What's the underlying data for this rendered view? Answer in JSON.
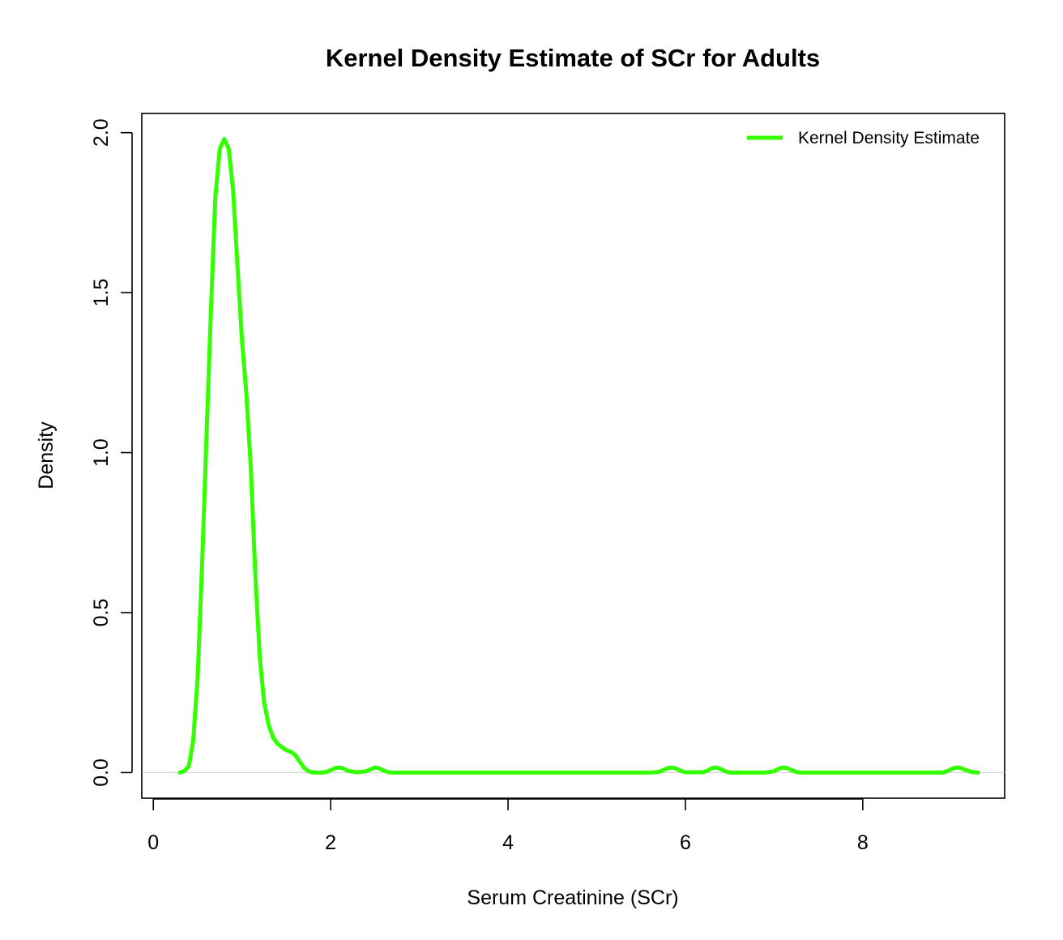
{
  "chart_data": {
    "type": "line",
    "title": "Kernel Density Estimate of SCr for Adults",
    "xlabel": "Serum Creatinine (SCr)",
    "ylabel": "Density",
    "xlim": [
      -0.13,
      9.6
    ],
    "ylim": [
      -0.08,
      2.06
    ],
    "xticks": [
      0,
      2,
      4,
      6,
      8
    ],
    "xtick_labels": [
      "0",
      "2",
      "4",
      "6",
      "8"
    ],
    "yticks": [
      0,
      0.5,
      1,
      1.5,
      2
    ],
    "ytick_labels": [
      "0.0",
      "0.5",
      "1.0",
      "1.5",
      "2.0"
    ],
    "grid": false,
    "legend_position": "top-right",
    "reference_line_y": 0,
    "reference_line_color": "#cccccc",
    "series": [
      {
        "name": "Kernel Density Estimate",
        "color": "#33ff00",
        "x": [
          0.3,
          0.35,
          0.4,
          0.45,
          0.5,
          0.55,
          0.6,
          0.65,
          0.7,
          0.75,
          0.8,
          0.85,
          0.9,
          0.95,
          1.0,
          1.05,
          1.1,
          1.15,
          1.2,
          1.25,
          1.3,
          1.35,
          1.4,
          1.45,
          1.5,
          1.55,
          1.6,
          1.65,
          1.7,
          1.75,
          1.8,
          1.85,
          1.9,
          1.95,
          2.0,
          2.05,
          2.1,
          2.15,
          2.2,
          2.3,
          2.4,
          2.45,
          2.5,
          2.55,
          2.6,
          2.65,
          2.7,
          3.0,
          4.0,
          5.0,
          5.6,
          5.7,
          5.75,
          5.8,
          5.85,
          5.9,
          5.95,
          6.0,
          6.2,
          6.25,
          6.3,
          6.35,
          6.4,
          6.45,
          6.5,
          6.9,
          7.0,
          7.05,
          7.1,
          7.15,
          7.2,
          7.25,
          7.3,
          8.0,
          8.9,
          8.95,
          9.0,
          9.05,
          9.1,
          9.15,
          9.2,
          9.25,
          9.3
        ],
        "y": [
          0.0,
          0.005,
          0.02,
          0.1,
          0.3,
          0.65,
          1.05,
          1.45,
          1.8,
          1.95,
          1.98,
          1.95,
          1.82,
          1.58,
          1.35,
          1.18,
          0.95,
          0.62,
          0.36,
          0.22,
          0.15,
          0.11,
          0.09,
          0.08,
          0.07,
          0.065,
          0.055,
          0.035,
          0.015,
          0.004,
          0.001,
          0.0,
          0.0,
          0.002,
          0.008,
          0.014,
          0.016,
          0.012,
          0.005,
          0.001,
          0.004,
          0.01,
          0.016,
          0.013,
          0.006,
          0.001,
          0.0,
          0.0,
          0.0,
          0.0,
          0.0,
          0.002,
          0.008,
          0.014,
          0.016,
          0.012,
          0.005,
          0.001,
          0.001,
          0.006,
          0.014,
          0.016,
          0.011,
          0.004,
          0.0,
          0.0,
          0.004,
          0.012,
          0.016,
          0.014,
          0.007,
          0.002,
          0.0,
          0.0,
          0.0,
          0.004,
          0.011,
          0.016,
          0.015,
          0.009,
          0.004,
          0.001,
          0.0
        ]
      }
    ]
  }
}
